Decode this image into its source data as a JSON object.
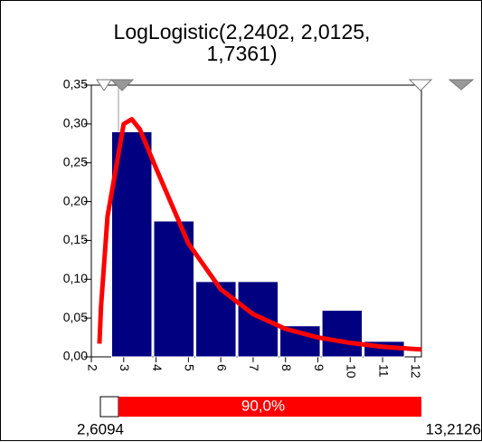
{
  "chart_data": {
    "type": "histogram",
    "title": "LogLogistic(2,2402, 2,0125, 1,7361)",
    "bins": [
      2.6,
      3.9,
      5.2,
      6.5,
      7.8,
      9.1,
      10.4,
      11.7
    ],
    "values": [
      0.29,
      0.175,
      0.097,
      0.097,
      0.04,
      0.06,
      0.02
    ],
    "color": "#000080",
    "curve": {
      "color": "#ff0000",
      "x": [
        2.25,
        2.3,
        2.5,
        3,
        3.25,
        3.5,
        4,
        5,
        6,
        7,
        8,
        9,
        10,
        11,
        12,
        12.2
      ],
      "values": [
        0.017,
        0.065,
        0.181,
        0.3,
        0.306,
        0.293,
        0.243,
        0.146,
        0.087,
        0.055,
        0.036,
        0.025,
        0.018,
        0.013,
        0.01,
        0.0096
      ]
    },
    "xlim": [
      2,
      12.2
    ],
    "xticks": [
      2,
      3,
      4,
      5,
      6,
      7,
      8,
      9,
      10,
      11,
      12
    ],
    "ylim": [
      0,
      0.35
    ],
    "yticks": [
      {
        "value": 0,
        "label": "0,00"
      },
      {
        "value": 0.05,
        "label": "0,05"
      },
      {
        "value": 0.1,
        "label": "0,10"
      },
      {
        "value": 0.15,
        "label": "0,15"
      },
      {
        "value": 0.2,
        "label": "0,20"
      },
      {
        "value": 0.25,
        "label": "0,25"
      },
      {
        "value": 0.3,
        "label": "0,30"
      },
      {
        "value": 0.35,
        "label": "0,35"
      }
    ],
    "range": {
      "percent": 90,
      "percent_label": "90,0%",
      "left": 2.6094,
      "left_label": "2,6094",
      "right": 13.2126,
      "right_label": "13,2126"
    }
  }
}
